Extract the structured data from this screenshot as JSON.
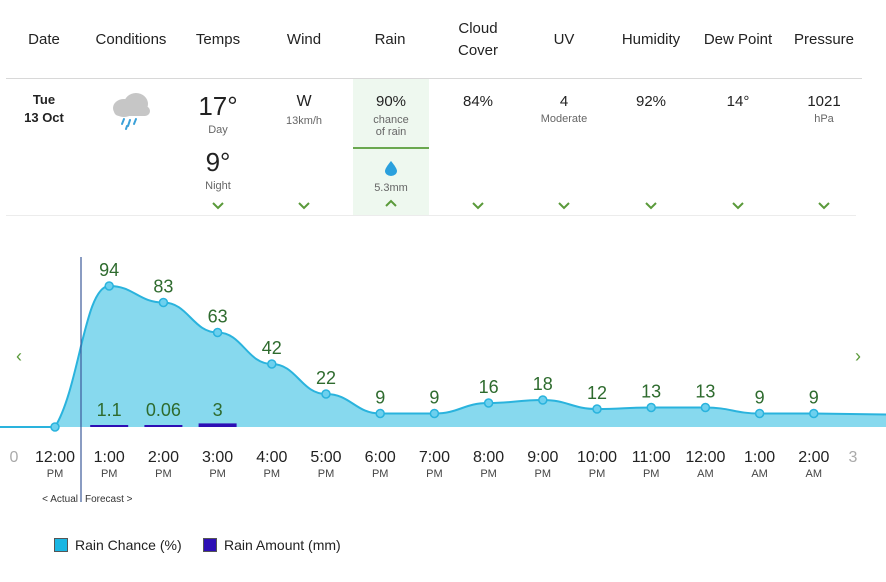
{
  "header": {
    "columns": [
      "Date",
      "Conditions",
      "Temps",
      "Wind",
      "Rain",
      "Cloud Cover",
      "UV",
      "Humidity",
      "Dew Point",
      "Pressure"
    ]
  },
  "day": {
    "weekday": "Tue",
    "date": "13 Oct",
    "conditions_icon": "rain-cloud-icon",
    "temp_day": "17°",
    "temp_day_label": "Day",
    "temp_night": "9°",
    "temp_night_label": "Night",
    "wind_dir": "W",
    "wind_speed": "13km/h",
    "rain_chance": "90%",
    "rain_chance_label1": "chance",
    "rain_chance_label2": "of rain",
    "rain_amount": "5.3mm",
    "cloud_cover": "84%",
    "uv": "4",
    "uv_label": "Moderate",
    "humidity": "92%",
    "dew_point": "14°",
    "pressure": "1021",
    "pressure_unit": "hPa"
  },
  "chart_data": {
    "type": "area",
    "categories": [
      "12:00 PM",
      "1:00 PM",
      "2:00 PM",
      "3:00 PM",
      "4:00 PM",
      "5:00 PM",
      "6:00 PM",
      "7:00 PM",
      "8:00 PM",
      "9:00 PM",
      "10:00 PM",
      "11:00 PM",
      "12:00 AM",
      "1:00 AM",
      "2:00 AM"
    ],
    "times": [
      "12:00",
      "1:00",
      "2:00",
      "3:00",
      "4:00",
      "5:00",
      "6:00",
      "7:00",
      "8:00",
      "9:00",
      "10:00",
      "11:00",
      "12:00",
      "1:00",
      "2:00"
    ],
    "ampm": [
      "PM",
      "PM",
      "PM",
      "PM",
      "PM",
      "PM",
      "PM",
      "PM",
      "PM",
      "PM",
      "PM",
      "PM",
      "AM",
      "AM",
      "AM"
    ],
    "series": [
      {
        "name": "Rain Chance (%)",
        "values": [
          0,
          94,
          83,
          63,
          42,
          22,
          9,
          9,
          16,
          18,
          12,
          13,
          13,
          9,
          9
        ],
        "labels": [
          "",
          "94",
          "83",
          "63",
          "42",
          "22",
          "9",
          "9",
          "16",
          "18",
          "12",
          "13",
          "13",
          "9",
          "9"
        ]
      },
      {
        "name": "Rain Amount (mm)",
        "values": [
          0,
          1.1,
          0.06,
          3,
          0,
          0,
          0,
          0,
          0,
          0,
          0,
          0,
          0,
          0,
          0
        ],
        "labels": [
          "",
          "1.1",
          "0.06",
          "3",
          "",
          "",
          "",
          "",
          "",
          "",
          "",
          "",
          "",
          "",
          ""
        ]
      }
    ],
    "edge_left_tick": "0",
    "edge_right_tick": "3",
    "actual_label": "< Actual",
    "forecast_label": "Forecast >",
    "ylim": [
      0,
      100
    ],
    "colors": {
      "area": "#87d9ee",
      "line": "#2ab3dd",
      "bar": "#2d0fb5",
      "label": "#2e6b2e"
    }
  },
  "legend": {
    "rain_chance": "Rain Chance (%)",
    "rain_amount": "Rain Amount (mm)"
  },
  "nav": {
    "prev": "‹",
    "next": "›"
  }
}
